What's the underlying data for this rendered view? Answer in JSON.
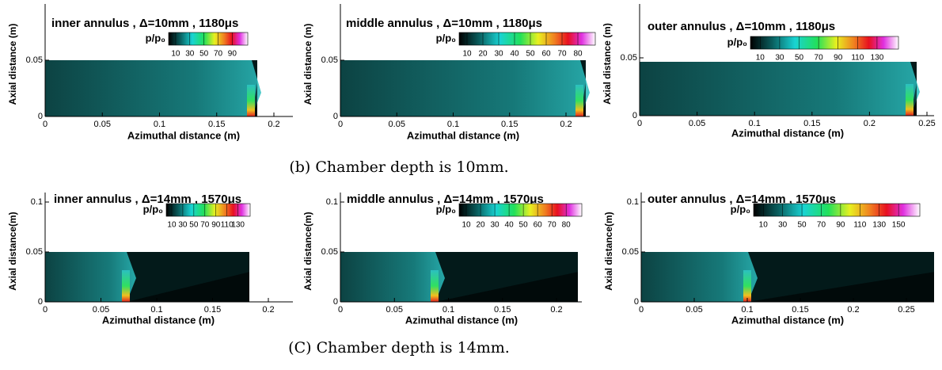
{
  "panels": [
    {
      "title": "inner annulus , Δ=10mm , 1180μs",
      "colorbar_label": "p/p₀",
      "colorbar_ticks": [
        10,
        30,
        50,
        70,
        90
      ],
      "x_label": "Azimuthal distance (m)",
      "y_label": "Axial distance (m)",
      "xticks": [
        0,
        0.05,
        0.1,
        0.15,
        0.2
      ],
      "yticks": [
        0,
        0.05
      ]
    },
    {
      "title": "middle annulus , Δ=10mm , 1180μs",
      "colorbar_label": "p/p₀",
      "colorbar_ticks": [
        10,
        20,
        30,
        40,
        50,
        60,
        70,
        80
      ],
      "x_label": "Azimuthal distance (m)",
      "y_label": "Axial distance (m)",
      "xticks": [
        0,
        0.05,
        0.1,
        0.15,
        0.2
      ],
      "yticks": [
        0,
        0.05
      ]
    },
    {
      "title": "outer annulus , Δ=10mm , 1180μs",
      "colorbar_label": "p/p₀",
      "colorbar_ticks": [
        10,
        30,
        50,
        70,
        90,
        110,
        130
      ],
      "x_label": "Azimuthal distance (m)",
      "y_label": "Axial distance (m)",
      "xticks": [
        0,
        0.05,
        0.1,
        0.15,
        0.2,
        0.25
      ],
      "yticks": [
        0,
        0.05
      ]
    },
    {
      "title": "inner annulus , Δ=14mm , 1570μs",
      "colorbar_label": "p/p₀",
      "colorbar_ticks": [
        10,
        30,
        50,
        70,
        90,
        110,
        130
      ],
      "x_label": "Azimuthal distance (m)",
      "y_label": "Axial distance(m)",
      "xticks": [
        0,
        0.05,
        0.1,
        0.15,
        0.2
      ],
      "yticks": [
        0,
        0.05,
        0.1
      ]
    },
    {
      "title": "middle annulus , Δ=14mm , 1570μs",
      "colorbar_label": "p/p₀",
      "colorbar_ticks": [
        10,
        20,
        30,
        40,
        50,
        60,
        70,
        80
      ],
      "x_label": "Azimuthal distance (m)",
      "y_label": "Axial distance(m)",
      "xticks": [
        0,
        0.05,
        0.1,
        0.15,
        0.2
      ],
      "yticks": [
        0,
        0.05,
        0.1
      ]
    },
    {
      "title": "outer annulus , Δ=14mm , 1570μs",
      "colorbar_label": "p/p₀",
      "colorbar_ticks": [
        10,
        30,
        50,
        70,
        90,
        110,
        130,
        150
      ],
      "x_label": "Azimuthal distance (m)",
      "y_label": "Axial distance(m)",
      "xticks": [
        0,
        0.05,
        0.1,
        0.15,
        0.2,
        0.25
      ],
      "yticks": [
        0,
        0.05,
        0.1
      ]
    }
  ],
  "captions": [
    "(b) Chamber depth is 10mm.",
    "(C) Chamber depth is 14mm."
  ]
}
